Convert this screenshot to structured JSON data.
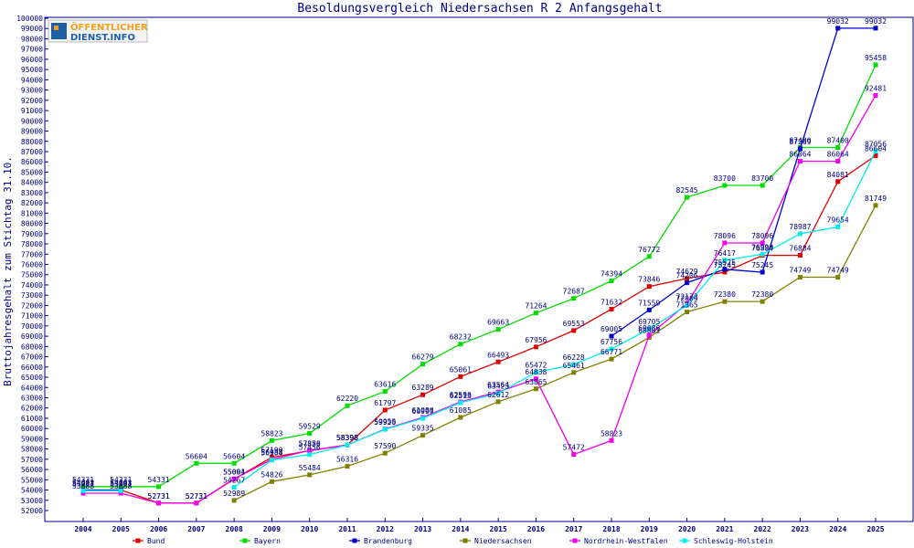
{
  "logo": {
    "line1": "ÖFFENTLICHER",
    "line2": "DIENST.INFO"
  },
  "chart_data": {
    "type": "line",
    "title": "Besoldungsvergleich Niedersachsen R 2 Anfangsgehalt",
    "xlabel": "",
    "ylabel": "Bruttojahresgehalt zum Stichtag 31.10.",
    "ylim": [
      52000,
      100000
    ],
    "ytick_step": 1000,
    "x": [
      2004,
      2005,
      2006,
      2007,
      2008,
      2009,
      2010,
      2011,
      2012,
      2013,
      2014,
      2015,
      2016,
      2017,
      2018,
      2019,
      2020,
      2021,
      2022,
      2023,
      2024,
      2025
    ],
    "grid": false,
    "legend": "bottom",
    "series": [
      {
        "name": "Bund",
        "color": "#dd0000",
        "values": [
          54003,
          54003,
          52731,
          52731,
          55061,
          57190,
          57836,
          58398,
          61797,
          63289,
          65061,
          66493,
          67956,
          69553,
          71632,
          73846,
          74629,
          75245,
          76884,
          76884,
          84081,
          86604
        ]
      },
      {
        "name": "Bayern",
        "color": "#00dd00",
        "values": [
          54331,
          54331,
          54331,
          56604,
          56604,
          58823,
          59529,
          62220,
          63616,
          66279,
          68232,
          69663,
          71264,
          72687,
          74394,
          76772,
          82545,
          83700,
          83700,
          87400,
          87400,
          95458
        ]
      },
      {
        "name": "Brandenburg",
        "color": "#0000cc",
        "values": [
          54003,
          54003,
          null,
          null,
          null,
          null,
          null,
          null,
          null,
          null,
          null,
          null,
          null,
          null,
          69005,
          71559,
          74206,
          75525,
          75245,
          87269,
          99032,
          99032
        ]
      },
      {
        "name": "Niedersachsen",
        "color": "#808000",
        "values": [
          null,
          null,
          null,
          null,
          52989,
          54826,
          55484,
          56316,
          57590,
          59335,
          61085,
          62612,
          63865,
          65461,
          66771,
          68881,
          71365,
          72380,
          72380,
          74749,
          74749,
          81749
        ]
      },
      {
        "name": "Nordrhein-Westfalen",
        "color": "#ee00ee",
        "values": [
          53688,
          53688,
          52731,
          52731,
          55094,
          56988,
          57850,
          58398,
          59955,
          61086,
          62596,
          63564,
          64838,
          57472,
          58823,
          69086,
          72172,
          78096,
          78096,
          86064,
          86064,
          92481
        ]
      },
      {
        "name": "Schleswig-Holstein",
        "color": "#00eeee",
        "values": [
          53931,
          53931,
          null,
          null,
          54267,
          56934,
          57456,
          58398,
          59920,
          60997,
          62513,
          63423,
          65472,
          66228,
          67756,
          69705,
          72009,
          76417,
          76990,
          78987,
          79654,
          87056
        ]
      }
    ]
  }
}
